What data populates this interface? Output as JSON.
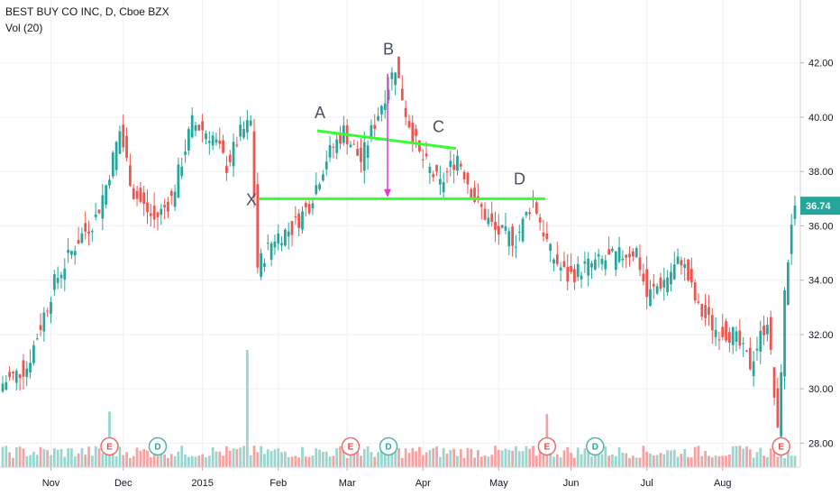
{
  "header": {
    "title": "BEST BUY CO INC, D, Cboe BZX",
    "volume_label": "Vol (20)"
  },
  "last_price": "36.74",
  "colors": {
    "up": "#26a69a",
    "down": "#ef5350",
    "vol_up": "#9ad6cf",
    "vol_down": "#f4a3a3",
    "pattern_line": "#33ff33",
    "arrow": "#e535d4",
    "grid": "#eef0f3",
    "axis_bg": "#ffffff",
    "price_tag": "#26a69a"
  },
  "pattern_labels": [
    "X",
    "A",
    "B",
    "C",
    "D"
  ],
  "events": [
    {
      "type": "E",
      "date": "2014-11-25"
    },
    {
      "type": "D",
      "date": "2014-12-15"
    },
    {
      "type": "E",
      "date": "2015-03-03"
    },
    {
      "type": "D",
      "date": "2015-03-18"
    },
    {
      "type": "E",
      "date": "2015-05-21"
    },
    {
      "type": "D",
      "date": "2015-06-10"
    },
    {
      "type": "E",
      "date": "2015-08-25"
    }
  ],
  "chart_data": {
    "type": "candlestick",
    "symbol": "BEST BUY CO INC",
    "interval": "D",
    "exchange": "Cboe BZX",
    "y_ticks": [
      "28.00",
      "30.00",
      "32.00",
      "34.00",
      "36.00",
      "38.00",
      "40.00",
      "42.00"
    ],
    "x_ticks": [
      "Nov",
      "Dec",
      "2015",
      "Feb",
      "Mar",
      "Apr",
      "May",
      "Jun",
      "Jul",
      "Aug"
    ],
    "ylim": [
      27.1,
      43.8
    ],
    "date_range": [
      "2014-10-13",
      "2015-08-31"
    ],
    "keypoints": [
      [
        "2014-10-13",
        30.2
      ],
      [
        "2014-10-22",
        30.8
      ],
      [
        "2014-11-03",
        33.9
      ],
      [
        "2014-11-12",
        35.5
      ],
      [
        "2014-11-19",
        36.3
      ],
      [
        "2014-11-24",
        37.5
      ],
      [
        "2014-11-28",
        39.5
      ],
      [
        "2014-12-04",
        37.2
      ],
      [
        "2014-12-12",
        36.2
      ],
      [
        "2014-12-19",
        37.0
      ],
      [
        "2014-12-29",
        39.8
      ],
      [
        "2015-01-06",
        39.3
      ],
      [
        "2015-01-12",
        38.2
      ],
      [
        "2015-01-16",
        39.4
      ],
      [
        "2015-01-21",
        39.8
      ],
      [
        "2015-01-23",
        34.5
      ],
      [
        "2015-01-30",
        35.6
      ],
      [
        "2015-02-06",
        35.9
      ],
      [
        "2015-02-13",
        36.8
      ],
      [
        "2015-02-20",
        38.5
      ],
      [
        "2015-02-27",
        39.5
      ],
      [
        "2015-03-06",
        38.4
      ],
      [
        "2015-03-12",
        39.8
      ],
      [
        "2015-03-20",
        41.9
      ],
      [
        "2015-03-25",
        40.2
      ],
      [
        "2015-03-31",
        38.6
      ],
      [
        "2015-04-08",
        37.5
      ],
      [
        "2015-04-15",
        38.6
      ],
      [
        "2015-04-22",
        37.0
      ],
      [
        "2015-04-30",
        35.8
      ],
      [
        "2015-05-08",
        35.5
      ],
      [
        "2015-05-15",
        37.0
      ],
      [
        "2015-05-22",
        35.0
      ],
      [
        "2015-05-29",
        34.1
      ],
      [
        "2015-06-05",
        34.5
      ],
      [
        "2015-06-12",
        34.7
      ],
      [
        "2015-06-19",
        34.9
      ],
      [
        "2015-06-26",
        35.1
      ],
      [
        "2015-07-01",
        33.4
      ],
      [
        "2015-07-08",
        34.0
      ],
      [
        "2015-07-15",
        34.8
      ],
      [
        "2015-07-22",
        32.9
      ],
      [
        "2015-07-29",
        32.2
      ],
      [
        "2015-08-05",
        32.0
      ],
      [
        "2015-08-12",
        30.9
      ],
      [
        "2015-08-19",
        32.6
      ],
      [
        "2015-08-24",
        28.3
      ],
      [
        "2015-08-26",
        33.4
      ],
      [
        "2015-08-28",
        36.2
      ],
      [
        "2015-08-31",
        36.74
      ]
    ],
    "volume_spikes": [
      "2014-11-25",
      "2015-01-20",
      "2015-05-21",
      "2015-08-25"
    ]
  }
}
